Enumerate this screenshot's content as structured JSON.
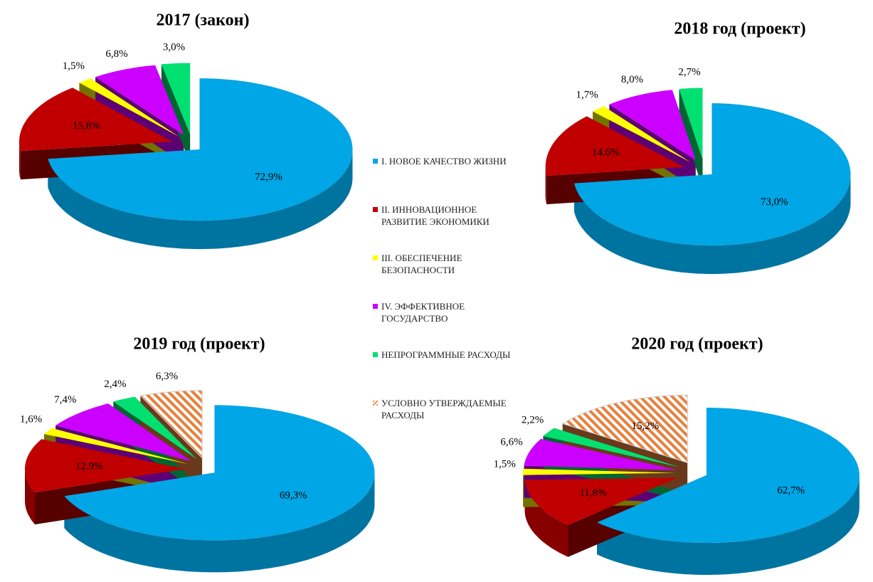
{
  "legend": {
    "labels": [
      "I. НОВОЕ КАЧЕСТВО ЖИЗНИ",
      "II. ИННОВАЦИОННОЕ РАЗВИТИЕ ЭКОНОМИКИ",
      "III. ОБЕСПЕЧЕНИЕ БЕЗОПАСНОСТИ",
      "IV. ЭФФЕКТИВНОЕ ГОСУДАРСТВО",
      "НЕПРОГРАММНЫЕ РАСХОДЫ",
      "УСЛОВНО УТВЕРЖДАЕМЫЕ РАСХОДЫ"
    ],
    "colors": [
      "#00a6e6",
      "#c00000",
      "#ffff00",
      "#cc00ff",
      "#00e070",
      "#e8803c"
    ],
    "hatched": [
      false,
      false,
      false,
      false,
      false,
      true
    ]
  },
  "chart_data": [
    {
      "type": "pie",
      "title": "2017 (закон)",
      "values": [
        72.9,
        15.8,
        1.5,
        6.8,
        3.0
      ],
      "value_labels": [
        "72,9%",
        "15,8%",
        "1,5%",
        "6,8%",
        "3,0%"
      ]
    },
    {
      "type": "pie",
      "title": "2018 год  (проект)",
      "values": [
        73.0,
        14.6,
        1.7,
        8.0,
        2.7
      ],
      "value_labels": [
        "73,0%",
        "14,6%",
        "1,7%",
        "8,0%",
        "2,7%"
      ]
    },
    {
      "type": "pie",
      "title": "2019 год  (проект)",
      "values": [
        69.3,
        12.9,
        1.6,
        7.4,
        2.4,
        6.3
      ],
      "value_labels": [
        "69,3%",
        "12,9%",
        "1,6%",
        "7,4%",
        "2,4%",
        "6,3%"
      ]
    },
    {
      "type": "pie",
      "title": "2020 год  (проект)",
      "values": [
        62.7,
        11.8,
        1.5,
        6.6,
        2.2,
        15.2
      ],
      "value_labels": [
        "62,7%",
        "11,8%",
        "1,5%",
        "6,6%",
        "2,2%",
        "15,2%"
      ]
    }
  ]
}
